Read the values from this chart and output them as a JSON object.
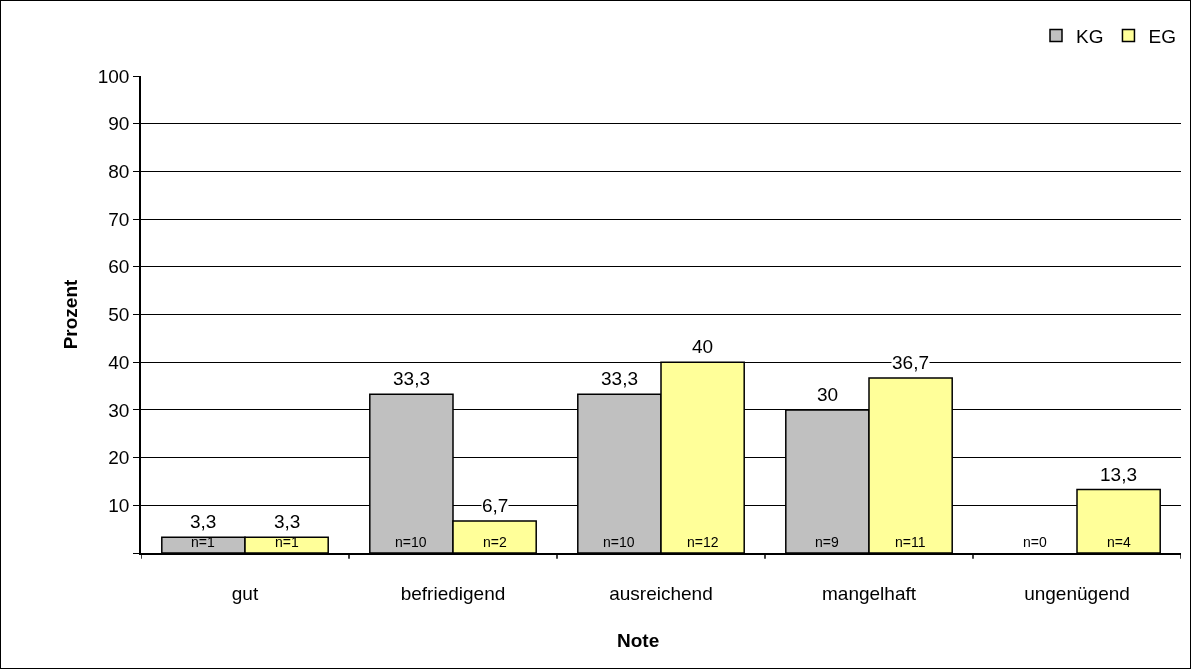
{
  "chart_data": [
    {
      "type": "bar",
      "xlabel": "Note",
      "ylabel": "Prozent",
      "categories": [
        "gut",
        "befriedigend",
        "ausreichend"
      ],
      "series": [
        {
          "color": "#c0c0c0",
          "values": [
            3.3,
            33.3,
            33.3
          ],
          "value_labels": [
            "3,3",
            "33,3",
            "33,3"
          ]
        },
        {
          "color": "#ffff99",
          "values": [
            3.3,
            6.7,
            40
          ],
          "value_labels": [
            "3,3",
            "6,7",
            "40"
          ]
        }
      ],
      "annotations": [
        {
          "text": "n=1",
          "x": "gut",
          "y": 0
        },
        {
          "text": "n=1",
          "x": "gut",
          "y": 0
        },
        {
          "text": "n=10",
          "x": "befriedigend",
          "y": 0
        },
        {
          "text": "n=2",
          "x": "befriedigend",
          "y": 0
        },
        {
          "text": "n=10",
          "x": "ausreichend",
          "y": 0
        },
        {
          "text": "n=12",
          "x": "ausreichend",
          "y": 0
        }
      ],
      "ylim": [
        0,
        100
      ],
      "yticks": [
        {
          "value": 0,
          "label": null
        },
        10,
        20,
        30,
        40,
        50,
        60,
        70,
        80,
        90,
        100
      ],
      "grid": "y",
      "legend": false
    },
    {
      "type": "bar",
      "categories": [
        "mangelhaft",
        "ungenügend"
      ],
      "series": [
        {
          "name": "KG",
          "color": "#c0c0c0",
          "values": [
            30,
            0
          ],
          "value_labels": [
            "30",
            null
          ]
        },
        {
          "name": "EG",
          "color": "#ffff99",
          "values": [
            36.7,
            13.3
          ],
          "value_labels": [
            "36,7",
            "13,3"
          ]
        }
      ],
      "annotations": [
        {
          "text": "n=9",
          "x": "mangelhaft",
          "y": 0
        },
        {
          "text": "n=11",
          "x": "mangelhaft",
          "y": 0
        },
        {
          "text": "n=0",
          "x": "ungenügend",
          "y": 0
        },
        {
          "text": "n=4",
          "x": "ungenügend",
          "y": 0
        }
      ],
      "ylim": [
        0,
        100
      ],
      "yticks": [
        {
          "value": 0,
          "label": null
        },
        10,
        20,
        30,
        40,
        50,
        60,
        70,
        80,
        90,
        100
      ],
      "grid": "y",
      "legend": "top right",
      "tick_labels": "x"
    }
  ]
}
